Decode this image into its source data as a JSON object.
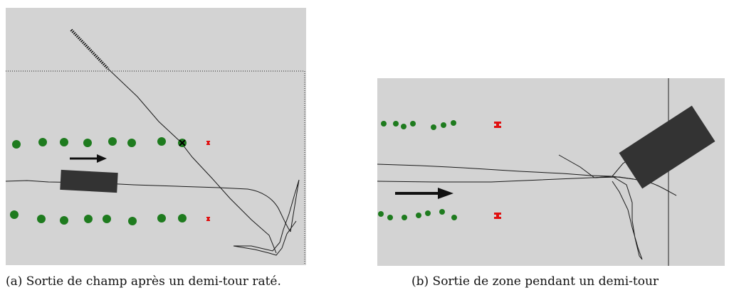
{
  "figure": {
    "subfigures": [
      {
        "id": "a",
        "caption": "(a) Sortie de champ après un demi-tour raté."
      },
      {
        "id": "b",
        "caption": "(b) Sortie de zone pendant un demi-tour"
      }
    ]
  },
  "colors": {
    "background": "#d3d3d3",
    "plant": "#1e7b1e",
    "marker": "#e01010",
    "vehicle": "#333333",
    "trajectory": "#1a1a1a",
    "boundary": "#222222"
  }
}
